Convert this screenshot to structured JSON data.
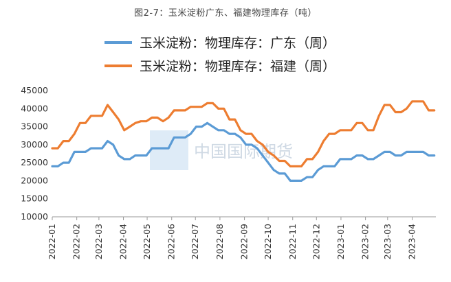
{
  "caption": "图2-7：玉米淀粉广东、福建物理库存（吨）",
  "watermark": "中国国际期货",
  "chart_data": {
    "type": "line",
    "title": "图2-7：玉米淀粉广东、福建物理库存（吨）",
    "xlabel": "",
    "ylabel": "",
    "ylim": [
      10000,
      45000
    ],
    "yticks": [
      10000,
      15000,
      20000,
      25000,
      30000,
      35000,
      40000,
      45000
    ],
    "xlim": [
      "2022-01",
      "2023-05"
    ],
    "xticks": [
      "2022-01",
      "2022-02",
      "2022-03",
      "2022-04",
      "2022-05",
      "2022-06",
      "2022-07",
      "2022-08",
      "2022-09",
      "2022-10",
      "2022-11",
      "2022-12",
      "2023-01",
      "2023-02",
      "2023-03",
      "2023-04"
    ],
    "grid": false,
    "legend_position": "top",
    "series": [
      {
        "name": "玉米淀粉：物理库存：广东（周）",
        "color": "#5b9bd5",
        "points": [
          [
            "2022-01-01",
            24000
          ],
          [
            "2022-01-08",
            24000
          ],
          [
            "2022-01-15",
            25000
          ],
          [
            "2022-01-22",
            25000
          ],
          [
            "2022-01-29",
            28000
          ],
          [
            "2022-02-05",
            28000
          ],
          [
            "2022-02-12",
            28000
          ],
          [
            "2022-02-19",
            29000
          ],
          [
            "2022-02-26",
            29000
          ],
          [
            "2022-03-05",
            29000
          ],
          [
            "2022-03-12",
            31000
          ],
          [
            "2022-03-19",
            30000
          ],
          [
            "2022-03-26",
            27000
          ],
          [
            "2022-04-02",
            26000
          ],
          [
            "2022-04-09",
            26000
          ],
          [
            "2022-04-16",
            27000
          ],
          [
            "2022-04-23",
            27000
          ],
          [
            "2022-04-30",
            27000
          ],
          [
            "2022-05-07",
            29000
          ],
          [
            "2022-05-14",
            29000
          ],
          [
            "2022-05-21",
            29000
          ],
          [
            "2022-05-28",
            29000
          ],
          [
            "2022-06-04",
            32000
          ],
          [
            "2022-06-11",
            32000
          ],
          [
            "2022-06-18",
            32000
          ],
          [
            "2022-06-25",
            33000
          ],
          [
            "2022-07-02",
            35000
          ],
          [
            "2022-07-09",
            35000
          ],
          [
            "2022-07-16",
            36000
          ],
          [
            "2022-07-23",
            35000
          ],
          [
            "2022-07-30",
            34000
          ],
          [
            "2022-08-06",
            34000
          ],
          [
            "2022-08-13",
            33000
          ],
          [
            "2022-08-20",
            33000
          ],
          [
            "2022-08-27",
            32000
          ],
          [
            "2022-09-03",
            30000
          ],
          [
            "2022-09-10",
            30000
          ],
          [
            "2022-09-17",
            29000
          ],
          [
            "2022-09-24",
            27000
          ],
          [
            "2022-10-01",
            25000
          ],
          [
            "2022-10-08",
            23000
          ],
          [
            "2022-10-15",
            22000
          ],
          [
            "2022-10-22",
            22000
          ],
          [
            "2022-10-29",
            20000
          ],
          [
            "2022-11-05",
            20000
          ],
          [
            "2022-11-12",
            20000
          ],
          [
            "2022-11-19",
            21000
          ],
          [
            "2022-11-26",
            21000
          ],
          [
            "2022-12-03",
            23000
          ],
          [
            "2022-12-10",
            24000
          ],
          [
            "2022-12-17",
            24000
          ],
          [
            "2022-12-24",
            24000
          ],
          [
            "2022-12-31",
            26000
          ],
          [
            "2023-01-07",
            26000
          ],
          [
            "2023-01-14",
            26000
          ],
          [
            "2023-01-21",
            27000
          ],
          [
            "2023-01-28",
            27000
          ],
          [
            "2023-02-04",
            26000
          ],
          [
            "2023-02-11",
            26000
          ],
          [
            "2023-02-18",
            27000
          ],
          [
            "2023-02-25",
            28000
          ],
          [
            "2023-03-04",
            28000
          ],
          [
            "2023-03-11",
            27000
          ],
          [
            "2023-03-18",
            27000
          ],
          [
            "2023-03-25",
            28000
          ],
          [
            "2023-04-01",
            28000
          ],
          [
            "2023-04-08",
            28000
          ],
          [
            "2023-04-15",
            28000
          ],
          [
            "2023-04-22",
            27000
          ],
          [
            "2023-04-29",
            27000
          ]
        ]
      },
      {
        "name": "玉米淀粉：物理库存：福建（周）",
        "color": "#ed7d31",
        "points": [
          [
            "2022-01-01",
            29000
          ],
          [
            "2022-01-08",
            29000
          ],
          [
            "2022-01-15",
            31000
          ],
          [
            "2022-01-22",
            31000
          ],
          [
            "2022-01-29",
            33000
          ],
          [
            "2022-02-05",
            36000
          ],
          [
            "2022-02-12",
            36000
          ],
          [
            "2022-02-19",
            38000
          ],
          [
            "2022-02-26",
            38000
          ],
          [
            "2022-03-05",
            38000
          ],
          [
            "2022-03-12",
            41000
          ],
          [
            "2022-03-19",
            39000
          ],
          [
            "2022-03-26",
            37000
          ],
          [
            "2022-04-02",
            34000
          ],
          [
            "2022-04-09",
            35000
          ],
          [
            "2022-04-16",
            36000
          ],
          [
            "2022-04-23",
            36500
          ],
          [
            "2022-04-30",
            36500
          ],
          [
            "2022-05-07",
            37500
          ],
          [
            "2022-05-14",
            37500
          ],
          [
            "2022-05-21",
            36500
          ],
          [
            "2022-05-28",
            37500
          ],
          [
            "2022-06-04",
            39500
          ],
          [
            "2022-06-11",
            39500
          ],
          [
            "2022-06-18",
            39500
          ],
          [
            "2022-06-25",
            40500
          ],
          [
            "2022-07-02",
            40500
          ],
          [
            "2022-07-09",
            40500
          ],
          [
            "2022-07-16",
            41500
          ],
          [
            "2022-07-23",
            41500
          ],
          [
            "2022-07-30",
            40000
          ],
          [
            "2022-08-06",
            40000
          ],
          [
            "2022-08-13",
            37000
          ],
          [
            "2022-08-20",
            37000
          ],
          [
            "2022-08-27",
            34000
          ],
          [
            "2022-09-03",
            33000
          ],
          [
            "2022-09-10",
            33000
          ],
          [
            "2022-09-17",
            31000
          ],
          [
            "2022-09-24",
            30000
          ],
          [
            "2022-10-01",
            28000
          ],
          [
            "2022-10-08",
            27000
          ],
          [
            "2022-10-15",
            25500
          ],
          [
            "2022-10-22",
            25500
          ],
          [
            "2022-10-29",
            24000
          ],
          [
            "2022-11-05",
            24000
          ],
          [
            "2022-11-12",
            24000
          ],
          [
            "2022-11-19",
            26000
          ],
          [
            "2022-11-26",
            26000
          ],
          [
            "2022-12-03",
            28000
          ],
          [
            "2022-12-10",
            31000
          ],
          [
            "2022-12-17",
            33000
          ],
          [
            "2022-12-24",
            33000
          ],
          [
            "2022-12-31",
            34000
          ],
          [
            "2023-01-07",
            34000
          ],
          [
            "2023-01-14",
            34000
          ],
          [
            "2023-01-21",
            36000
          ],
          [
            "2023-01-28",
            36000
          ],
          [
            "2023-02-04",
            34000
          ],
          [
            "2023-02-11",
            34000
          ],
          [
            "2023-02-18",
            38000
          ],
          [
            "2023-02-25",
            41000
          ],
          [
            "2023-03-04",
            41000
          ],
          [
            "2023-03-11",
            39000
          ],
          [
            "2023-03-18",
            39000
          ],
          [
            "2023-03-25",
            40000
          ],
          [
            "2023-04-01",
            42000
          ],
          [
            "2023-04-08",
            42000
          ],
          [
            "2023-04-15",
            42000
          ],
          [
            "2023-04-22",
            39500
          ],
          [
            "2023-04-29",
            39500
          ]
        ]
      }
    ]
  }
}
